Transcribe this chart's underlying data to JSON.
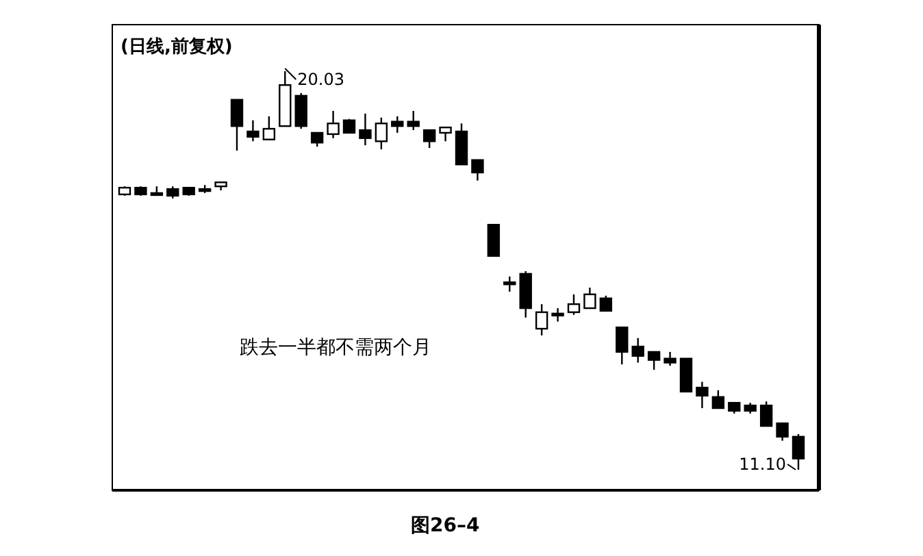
{
  "chart_data": {
    "type": "candlestick",
    "title": "(日线,前复权)",
    "categories": [
      null,
      null,
      null,
      null,
      null,
      null,
      null,
      null,
      null,
      null,
      null,
      null,
      null,
      null,
      null,
      null,
      null,
      null,
      null,
      null,
      null,
      null,
      null,
      null,
      null,
      null,
      null,
      null,
      null,
      null,
      null,
      null,
      null,
      null,
      null,
      null,
      null,
      null,
      null,
      null,
      null,
      null,
      null
    ],
    "ohlc": [
      [
        17.27,
        17.45,
        17.24,
        17.42
      ],
      [
        17.42,
        17.45,
        17.24,
        17.27
      ],
      [
        17.3,
        17.45,
        17.3,
        17.3
      ],
      [
        17.39,
        17.45,
        17.18,
        17.24
      ],
      [
        17.42,
        17.42,
        17.24,
        17.27
      ],
      [
        17.39,
        17.48,
        17.3,
        17.36
      ],
      [
        17.45,
        17.54,
        17.36,
        17.54
      ],
      [
        19.39,
        19.39,
        18.25,
        18.8
      ],
      [
        18.68,
        18.93,
        18.46,
        18.56
      ],
      [
        18.5,
        19.02,
        18.5,
        18.74
      ],
      [
        18.8,
        20.03,
        18.8,
        19.72
      ],
      [
        19.48,
        19.54,
        18.74,
        18.8
      ],
      [
        18.65,
        18.65,
        18.34,
        18.43
      ],
      [
        18.62,
        19.14,
        18.53,
        18.86
      ],
      [
        18.93,
        18.96,
        18.65,
        18.65
      ],
      [
        18.71,
        19.08,
        18.37,
        18.53
      ],
      [
        18.46,
        18.99,
        18.28,
        18.86
      ],
      [
        18.9,
        19.02,
        18.65,
        18.8
      ],
      [
        18.9,
        19.14,
        18.71,
        18.8
      ],
      [
        18.71,
        18.71,
        18.31,
        18.46
      ],
      [
        18.65,
        18.77,
        18.46,
        18.77
      ],
      [
        18.68,
        18.86,
        17.94,
        17.94
      ],
      [
        18.04,
        18.04,
        17.58,
        17.76
      ],
      [
        16.59,
        16.59,
        15.89,
        15.89
      ],
      [
        15.3,
        15.43,
        15.09,
        15.3
      ],
      [
        15.49,
        15.55,
        14.51,
        14.72
      ],
      [
        14.26,
        14.81,
        14.11,
        14.63
      ],
      [
        14.6,
        14.72,
        14.42,
        14.6
      ],
      [
        14.63,
        15.03,
        14.57,
        14.81
      ],
      [
        14.72,
        15.18,
        14.72,
        15.03
      ],
      [
        14.94,
        15.0,
        14.66,
        14.66
      ],
      [
        14.29,
        14.29,
        13.46,
        13.74
      ],
      [
        13.86,
        14.05,
        13.5,
        13.65
      ],
      [
        13.74,
        13.74,
        13.34,
        13.56
      ],
      [
        13.59,
        13.74,
        13.43,
        13.5
      ],
      [
        13.59,
        13.59,
        12.85,
        12.85
      ],
      [
        12.94,
        13.07,
        12.48,
        12.76
      ],
      [
        12.73,
        12.88,
        12.48,
        12.48
      ],
      [
        12.6,
        12.6,
        12.36,
        12.42
      ],
      [
        12.54,
        12.6,
        12.36,
        12.42
      ],
      [
        12.54,
        12.63,
        12.08,
        12.08
      ],
      [
        12.14,
        12.14,
        11.75,
        11.84
      ],
      [
        11.84,
        11.9,
        11.1,
        11.35
      ]
    ],
    "annotations": [
      "20.03",
      "11.10",
      "跌去一半都不需两个月",
      "图26–4"
    ]
  }
}
